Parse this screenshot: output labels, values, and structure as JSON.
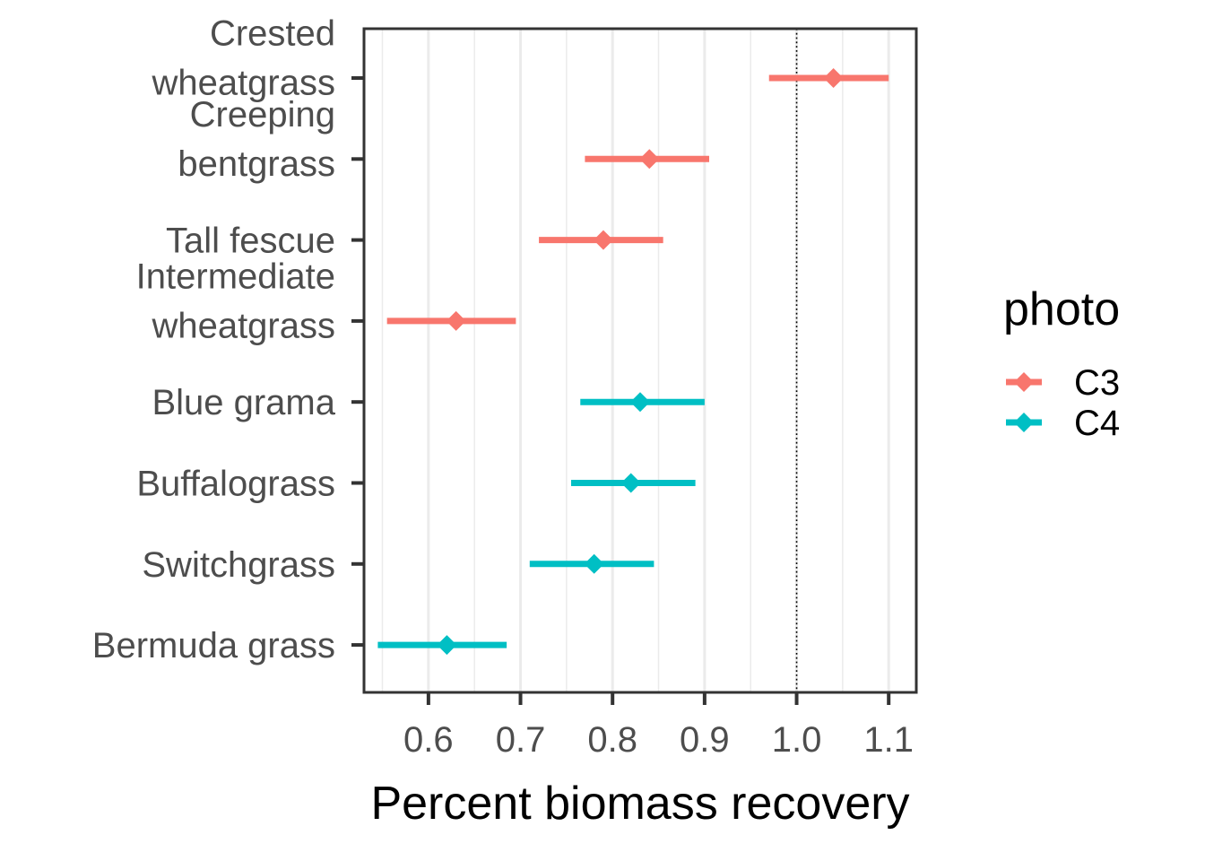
{
  "chart_data": {
    "type": "forest",
    "xlabel": "Percent biomass recovery",
    "ylabel": "",
    "xlim": [
      0.53,
      1.13
    ],
    "x_ticks": [
      "0.6",
      "0.7",
      "0.8",
      "0.9",
      "1.0",
      "1.1"
    ],
    "reference_line": {
      "x": 1.0,
      "style": "dotted"
    },
    "grid": {
      "vertical_major": true,
      "vertical_minor": true,
      "horizontal": false
    },
    "categories": [
      [
        "Crested",
        "wheatgrass"
      ],
      [
        "Creeping",
        "bentgrass"
      ],
      [
        "Tall fescue"
      ],
      [
        "Intermediate",
        "wheatgrass"
      ],
      [
        "Blue grama"
      ],
      [
        "Buffalograss"
      ],
      [
        "Switchgrass"
      ],
      [
        "Bermuda grass"
      ]
    ],
    "points": [
      {
        "group": "C3",
        "estimate": 1.04,
        "low": 0.97,
        "high": 1.1
      },
      {
        "group": "C3",
        "estimate": 0.84,
        "low": 0.77,
        "high": 0.905
      },
      {
        "group": "C3",
        "estimate": 0.79,
        "low": 0.72,
        "high": 0.855
      },
      {
        "group": "C3",
        "estimate": 0.63,
        "low": 0.555,
        "high": 0.695
      },
      {
        "group": "C4",
        "estimate": 0.83,
        "low": 0.765,
        "high": 0.9
      },
      {
        "group": "C4",
        "estimate": 0.82,
        "low": 0.755,
        "high": 0.89
      },
      {
        "group": "C4",
        "estimate": 0.78,
        "low": 0.71,
        "high": 0.845
      },
      {
        "group": "C4",
        "estimate": 0.62,
        "low": 0.545,
        "high": 0.685
      }
    ],
    "legend": {
      "title": "photo",
      "placement": "right",
      "entries": [
        {
          "label": "C3",
          "color": "#F8766D"
        },
        {
          "label": "C4",
          "color": "#00BFC4"
        }
      ]
    }
  }
}
